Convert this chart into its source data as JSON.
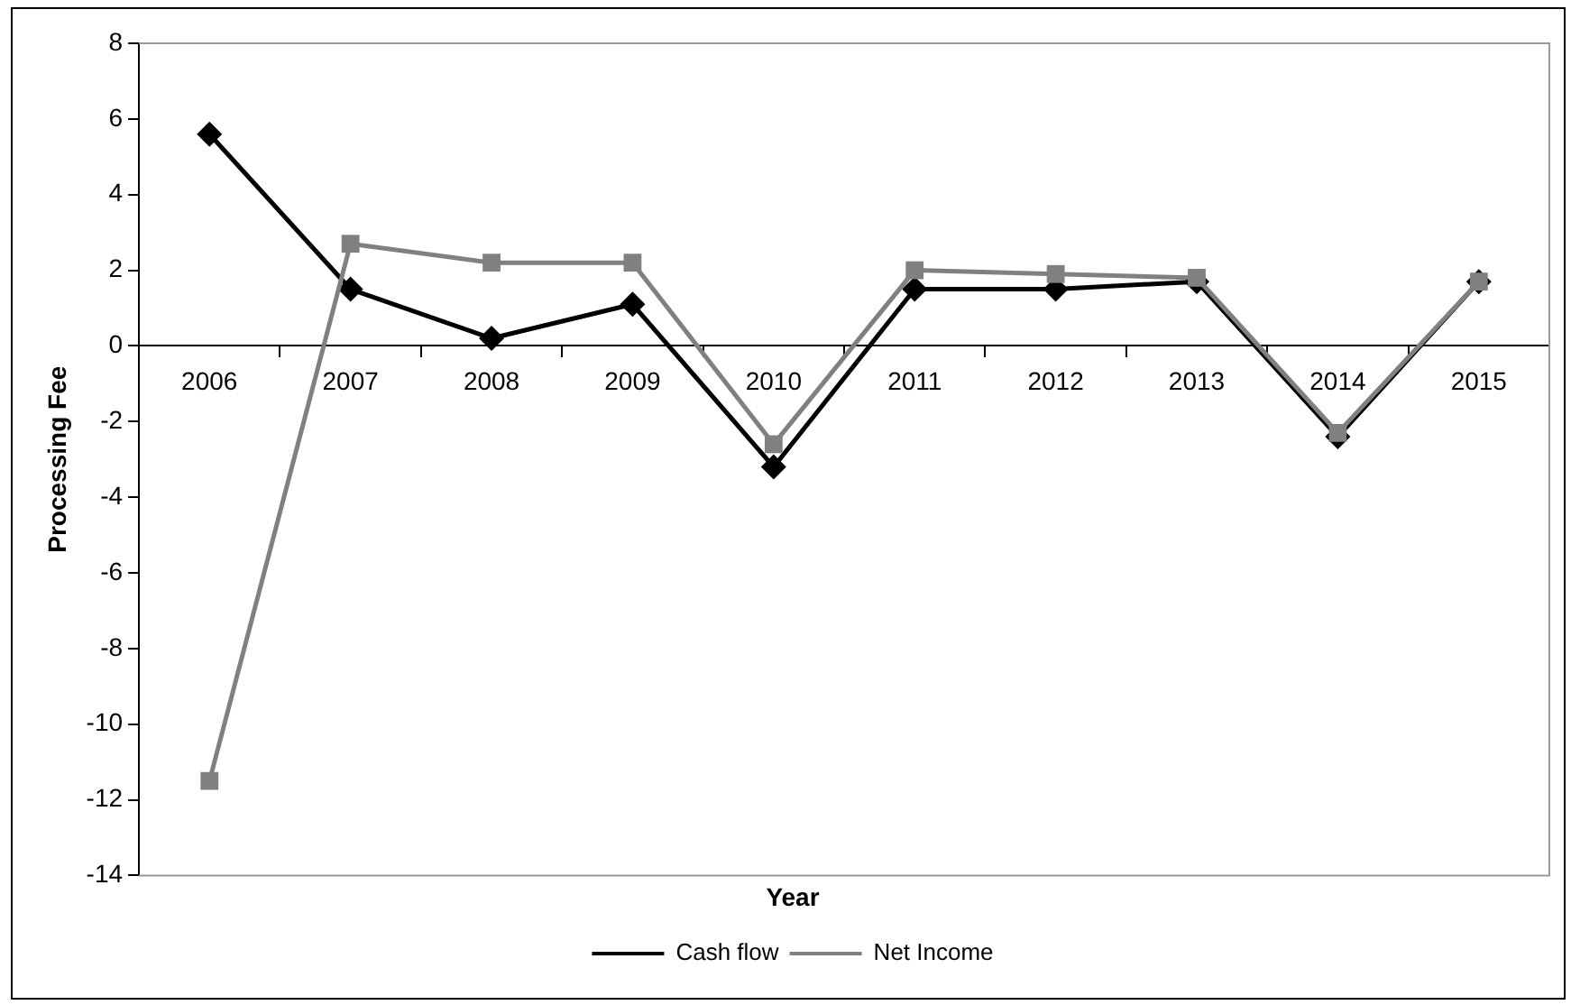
{
  "chart_data": {
    "type": "line",
    "xlabel": "Year",
    "ylabel": "Processing Fee",
    "categories": [
      "2006",
      "2007",
      "2008",
      "2009",
      "2010",
      "2011",
      "2012",
      "2013",
      "2014",
      "2015"
    ],
    "series": [
      {
        "name": "Cash flow",
        "color": "#000000",
        "marker": "diamond",
        "values": [
          5.6,
          1.5,
          0.2,
          1.1,
          -3.2,
          1.5,
          1.5,
          1.7,
          -2.4,
          1.7
        ]
      },
      {
        "name": "Net Income",
        "color": "#808080",
        "marker": "square",
        "values": [
          -11.5,
          2.7,
          2.2,
          2.2,
          -2.6,
          2.0,
          1.9,
          1.8,
          -2.3,
          1.7
        ]
      }
    ],
    "ylim": [
      -14,
      8
    ],
    "yticks": [
      -14,
      -12,
      -10,
      -8,
      -6,
      -4,
      -2,
      0,
      2,
      4,
      6,
      8
    ],
    "grid": false,
    "legend": "bottom",
    "line_style": "solid"
  }
}
